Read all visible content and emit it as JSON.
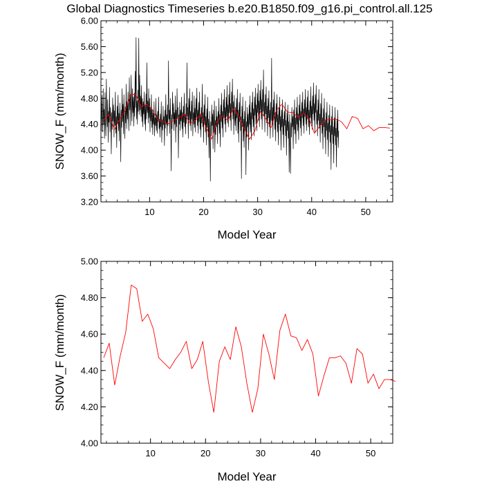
{
  "chart_data": [
    {
      "type": "line",
      "title": "Global Diagnostics Timeseries b.e20.B1850.f09_g16.pi_control.all.125",
      "xlabel": "Model Year",
      "ylabel": "SNOW_F (mm/month)",
      "xlim": [
        1,
        55
      ],
      "ylim": [
        3.2,
        6.0
      ],
      "x_ticks": [
        10,
        20,
        30,
        40,
        50
      ],
      "y_ticks": [
        "3.20",
        "3.60",
        "4.00",
        "4.40",
        "4.80",
        "5.20",
        "5.60",
        "6.00"
      ],
      "grid": false,
      "series": [
        {
          "color": "#000000",
          "x_start": 1.0,
          "x_step": 0.0833333,
          "values": [
            4.72,
            4.31,
            4.85,
            4.52,
            4.28,
            4.95,
            4.41,
            4.63,
            4.18,
            4.89,
            4.47,
            4.22,
            5.1,
            4.55,
            4.36,
            4.78,
            4.12,
            4.6,
            4.43,
            4.97,
            4.28,
            4.66,
            4.5,
            3.94,
            4.58,
            4.32,
            4.81,
            4.45,
            4.7,
            4.2,
            4.61,
            4.38,
            4.9,
            4.26,
            4.52,
            4.04,
            4.68,
            4.41,
            4.85,
            4.3,
            4.57,
            4.14,
            4.73,
            4.48,
            3.82,
            4.62,
            4.35,
            4.95,
            4.44,
            4.71,
            4.25,
            4.86,
            4.53,
            4.18,
            4.67,
            4.42,
            5.02,
            4.33,
            4.75,
            4.48,
            4.9,
            4.55,
            4.3,
            5.12,
            4.62,
            4.84,
            4.38,
            5.16,
            4.7,
            4.45,
            4.95,
            4.58,
            4.82,
            4.37,
            4.88,
            4.52,
            5.22,
            4.66,
            5.74,
            4.48,
            4.76,
            4.4,
            4.93,
            4.6,
            5.73,
            4.55,
            5.16,
            4.62,
            4.84,
            4.52,
            5.0,
            4.44,
            4.8,
            4.36,
            4.75,
            4.56,
            4.9,
            4.4,
            4.7,
            4.3,
            4.87,
            4.48,
            5.35,
            4.58,
            4.76,
            4.42,
            4.95,
            4.5,
            4.8,
            4.28,
            4.66,
            4.45,
            4.86,
            4.35,
            4.62,
            4.24,
            4.58,
            4.4,
            4.75,
            4.22,
            4.5,
            4.38,
            4.8,
            4.3,
            4.55,
            4.26,
            4.6,
            4.44,
            4.82,
            4.33,
            4.48,
            4.2,
            4.56,
            4.36,
            4.75,
            4.12,
            4.47,
            4.31,
            4.68,
            4.39,
            4.52,
            4.07,
            4.62,
            4.34,
            4.86,
            4.4,
            4.55,
            4.22,
            4.7,
            4.38,
            5.38,
            4.48,
            4.62,
            4.26,
            4.8,
            4.45,
            3.68,
            4.55,
            4.33,
            4.9,
            4.48,
            4.72,
            4.3,
            4.58,
            4.4,
            4.84,
            4.12,
            4.62,
            4.36,
            4.95,
            4.5,
            4.66,
            3.88,
            4.55,
            4.4,
            4.74,
            4.3,
            4.62,
            4.45,
            4.82,
            4.33,
            4.58,
            4.2,
            4.68,
            4.43,
            4.88,
            4.36,
            4.55,
            4.25,
            4.72,
            4.41,
            5.35,
            4.52,
            4.66,
            4.18,
            4.8,
            4.46,
            4.95,
            4.38,
            4.6,
            4.3,
            4.76,
            4.48,
            4.9,
            4.22,
            4.58,
            4.4,
            4.84,
            4.35,
            4.65,
            4.28,
            4.8,
            4.5,
            4.96,
            4.38,
            4.62,
            4.26,
            4.74,
            4.44,
            4.9,
            4.32,
            4.55,
            4.2,
            4.66,
            4.42,
            5.02,
            4.36,
            4.58,
            4.12,
            4.7,
            4.4,
            4.86,
            4.28,
            4.52,
            4.08,
            4.64,
            4.35,
            4.82,
            4.2,
            4.48,
            3.88,
            4.6,
            4.32,
            3.52,
            4.44,
            4.22,
            4.7,
            4.38,
            4.56,
            4.02,
            4.62,
            4.3,
            4.76,
            3.97,
            4.46,
            4.24,
            4.68,
            4.36,
            4.52,
            4.1,
            4.6,
            4.4,
            4.8,
            4.26,
            4.55,
            4.05,
            4.7,
            4.44,
            4.88,
            4.34,
            4.6,
            4.2,
            4.78,
            4.5,
            4.94,
            4.4,
            4.66,
            4.28,
            4.82,
            4.52,
            5.0,
            4.42,
            4.7,
            4.36,
            4.86,
            4.58,
            5.05,
            4.46,
            4.72,
            4.3,
            4.9,
            4.6,
            5.1,
            4.48,
            4.75,
            4.24,
            4.85,
            4.55,
            4.38,
            4.66,
            4.3,
            4.8,
            4.5,
            4.94,
            4.26,
            4.62,
            4.12,
            4.74,
            4.44,
            4.88,
            4.3,
            4.52,
            3.56,
            4.68,
            4.36,
            4.82,
            4.14,
            4.48,
            4.04,
            4.6,
            4.3,
            4.76,
            3.62,
            4.44,
            4.2,
            4.66,
            4.36,
            4.56,
            4.0,
            4.7,
            4.4,
            4.84,
            4.28,
            4.58,
            4.16,
            4.74,
            4.48,
            4.9,
            4.36,
            4.64,
            4.22,
            4.82,
            4.54,
            4.96,
            4.4,
            4.7,
            4.3,
            4.88,
            4.58,
            5.02,
            4.46,
            4.76,
            4.36,
            4.92,
            4.62,
            5.08,
            4.48,
            4.78,
            4.32,
            4.94,
            4.6,
            5.24,
            4.52,
            4.74,
            4.28,
            4.86,
            4.56,
            4.98,
            4.42,
            4.68,
            4.22,
            4.8,
            4.5,
            4.92,
            4.36,
            4.62,
            4.18,
            4.74,
            4.46,
            5.42,
            4.4,
            4.66,
            4.2,
            4.78,
            4.5,
            4.9,
            4.32,
            4.58,
            4.14,
            4.72,
            4.44,
            4.86,
            4.28,
            4.55,
            4.08,
            4.66,
            4.4,
            4.82,
            4.3,
            4.52,
            4.0,
            4.62,
            4.36,
            4.78,
            4.24,
            4.48,
            4.04,
            4.6,
            4.38,
            4.74,
            4.22,
            4.46,
            3.92,
            4.58,
            4.3,
            4.7,
            4.18,
            4.44,
            3.66,
            4.56,
            4.28,
            3.64,
            4.42,
            4.2,
            4.66,
            4.36,
            4.52,
            4.02,
            4.62,
            4.32,
            4.78,
            4.25,
            4.5,
            4.1,
            4.66,
            4.4,
            4.82,
            4.3,
            4.56,
            4.16,
            4.7,
            4.46,
            4.86,
            4.34,
            4.6,
            4.22,
            4.74,
            4.5,
            4.9,
            4.38,
            4.64,
            4.26,
            4.78,
            4.52,
            4.94,
            4.4,
            4.66,
            4.3,
            4.82,
            4.48,
            4.92,
            4.36,
            4.62,
            4.24,
            4.76,
            4.5,
            4.98,
            4.42,
            4.68,
            4.32,
            4.84,
            4.56,
            5.04,
            4.46,
            4.72,
            4.28,
            4.86,
            4.58,
            5.0,
            4.4,
            4.62,
            4.22,
            4.78,
            4.46,
            4.94,
            4.34,
            4.56,
            4.12,
            4.72,
            4.4,
            4.88,
            4.26,
            4.5,
            4.02,
            4.64,
            4.36,
            4.8,
            4.2,
            4.46,
            3.94,
            4.58,
            4.3,
            4.74,
            4.16,
            4.42,
            3.9,
            4.54,
            4.28,
            4.7,
            4.12,
            4.38,
            3.7,
            4.52,
            4.24,
            4.68,
            4.1,
            4.36,
            3.8,
            4.5,
            4.22,
            4.66,
            4.08,
            4.34,
            3.74,
            4.48,
            4.2,
            4.62,
            4.04,
            4.3
          ]
        },
        {
          "color": "#ff0000",
          "x": [
            1.5,
            2.5,
            3.5,
            4.5,
            5.5,
            6.5,
            7.5,
            8.5,
            9.5,
            10.5,
            11.5,
            12.5,
            13.5,
            14.5,
            15.5,
            16.5,
            17.5,
            18.5,
            19.5,
            20.5,
            21.5,
            22.5,
            23.5,
            24.5,
            25.5,
            26.5,
            27.5,
            28.5,
            29.5,
            30.5,
            31.5,
            32.5,
            33.5,
            34.5,
            35.5,
            36.5,
            37.5,
            38.5,
            39.5,
            40.5,
            41.5,
            42.5,
            43.5,
            44.5,
            45.5,
            46.5,
            47.5,
            48.5,
            49.5,
            50.5,
            51.5,
            52.5,
            53.5,
            54.5
          ],
          "values": [
            4.47,
            4.55,
            4.32,
            4.48,
            4.61,
            4.87,
            4.85,
            4.67,
            4.71,
            4.63,
            4.47,
            4.44,
            4.41,
            4.46,
            4.5,
            4.56,
            4.41,
            4.46,
            4.56,
            4.34,
            4.17,
            4.45,
            4.53,
            4.46,
            4.64,
            4.53,
            4.33,
            4.17,
            4.3,
            4.6,
            4.49,
            4.35,
            4.62,
            4.71,
            4.59,
            4.58,
            4.51,
            4.57,
            4.49,
            4.26,
            4.37,
            4.47,
            4.47,
            4.48,
            4.44,
            4.33,
            4.52,
            4.49,
            4.33,
            4.38,
            4.3,
            4.35,
            4.35,
            4.34
          ]
        }
      ]
    },
    {
      "type": "line",
      "xlabel": "Model Year",
      "ylabel": "SNOW_F (mm/month)",
      "xlim": [
        1,
        54
      ],
      "ylim": [
        4.0,
        5.0
      ],
      "x_ticks": [
        10,
        20,
        30,
        40,
        50
      ],
      "y_ticks": [
        "4.00",
        "4.20",
        "4.40",
        "4.60",
        "4.80",
        "5.00"
      ],
      "grid": false,
      "series": [
        {
          "color": "#ff0000",
          "x": [
            1.5,
            2.5,
            3.5,
            4.5,
            5.5,
            6.5,
            7.5,
            8.5,
            9.5,
            10.5,
            11.5,
            12.5,
            13.5,
            14.5,
            15.5,
            16.5,
            17.5,
            18.5,
            19.5,
            20.5,
            21.5,
            22.5,
            23.5,
            24.5,
            25.5,
            26.5,
            27.5,
            28.5,
            29.5,
            30.5,
            31.5,
            32.5,
            33.5,
            34.5,
            35.5,
            36.5,
            37.5,
            38.5,
            39.5,
            40.5,
            41.5,
            42.5,
            43.5,
            44.5,
            45.5,
            46.5,
            47.5,
            48.5,
            49.5,
            50.5,
            51.5,
            52.5,
            53.5,
            54.5
          ],
          "values": [
            4.47,
            4.55,
            4.32,
            4.48,
            4.61,
            4.87,
            4.85,
            4.67,
            4.71,
            4.63,
            4.47,
            4.44,
            4.41,
            4.46,
            4.5,
            4.56,
            4.41,
            4.46,
            4.56,
            4.34,
            4.17,
            4.45,
            4.53,
            4.46,
            4.64,
            4.53,
            4.33,
            4.17,
            4.3,
            4.6,
            4.49,
            4.35,
            4.62,
            4.71,
            4.59,
            4.58,
            4.51,
            4.57,
            4.49,
            4.26,
            4.37,
            4.47,
            4.47,
            4.48,
            4.44,
            4.33,
            4.52,
            4.49,
            4.33,
            4.38,
            4.3,
            4.35,
            4.35,
            4.34
          ]
        }
      ]
    }
  ]
}
